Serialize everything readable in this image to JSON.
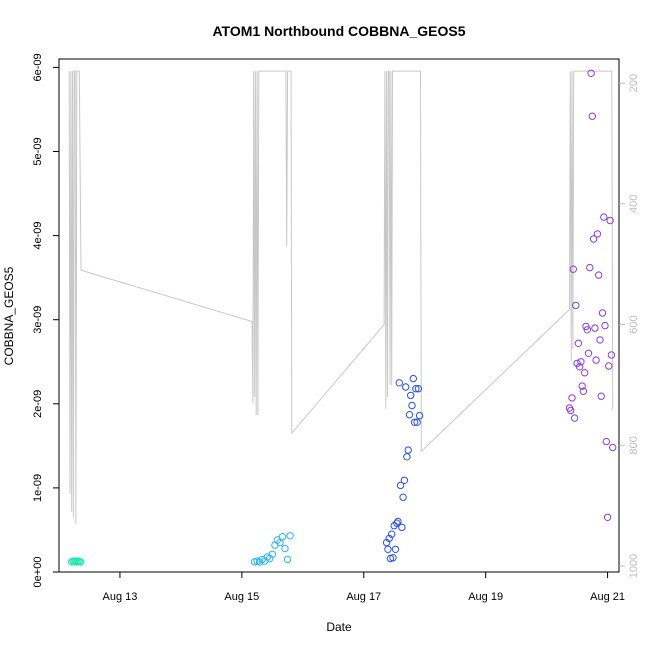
{
  "chart_data": {
    "type": "scatter",
    "title": "ATOM1 Northbound COBBNA_GEOS5",
    "xlabel": "Date",
    "ylabel": "COBBNA_GEOS5",
    "x_ticks": [
      "Aug 13",
      "Aug 15",
      "Aug 17",
      "Aug 19",
      "Aug 21"
    ],
    "y_ticks": [
      "0e+00",
      "1e-09",
      "2e-09",
      "3e-09",
      "4e-09",
      "5e-09",
      "6e-09"
    ],
    "y2_ticks": [
      "200",
      "400",
      "600",
      "800",
      "1000"
    ],
    "xlim": [
      "Aug 12 00:00",
      "Aug 21 04:30"
    ],
    "ylim": [
      0,
      6.1e-09
    ],
    "y2lim_reversed": [
      1010,
      160
    ],
    "grid": false,
    "colors": {
      "line": "#c8c8c8",
      "points_aug12": "#1ee6b4",
      "points_aug15": "#28b4f0",
      "points_aug17": "#2850f0",
      "points_aug20": "#8c3ce6"
    },
    "points": [
      {
        "date": "Aug 12 05:00",
        "value": 1.2e-10
      },
      {
        "date": "Aug 12 05:30",
        "value": 1.3e-10
      },
      {
        "date": "Aug 12 06:00",
        "value": 1.25e-10
      },
      {
        "date": "Aug 12 06:30",
        "value": 1.3e-10
      },
      {
        "date": "Aug 12 07:00",
        "value": 1.2e-10
      },
      {
        "date": "Aug 12 07:30",
        "value": 1.3e-10
      },
      {
        "date": "Aug 12 08:00",
        "value": 1.25e-10
      },
      {
        "date": "Aug 12 08:30",
        "value": 1.2e-10
      },
      {
        "date": "Aug 15 05:00",
        "value": 1.2e-10
      },
      {
        "date": "Aug 15 06:00",
        "value": 1.3e-10
      },
      {
        "date": "Aug 15 07:00",
        "value": 1.2e-10
      },
      {
        "date": "Aug 15 08:00",
        "value": 1.5e-10
      },
      {
        "date": "Aug 15 09:00",
        "value": 1.3e-10
      },
      {
        "date": "Aug 15 10:00",
        "value": 1.8e-10
      },
      {
        "date": "Aug 15 11:00",
        "value": 1.6e-10
      },
      {
        "date": "Aug 15 12:00",
        "value": 2.1e-10
      },
      {
        "date": "Aug 15 13:00",
        "value": 3.2e-10
      },
      {
        "date": "Aug 15 14:00",
        "value": 3.8e-10
      },
      {
        "date": "Aug 15 15:00",
        "value": 3.5e-10
      },
      {
        "date": "Aug 15 16:00",
        "value": 4.2e-10
      },
      {
        "date": "Aug 15 17:00",
        "value": 2.8e-10
      },
      {
        "date": "Aug 15 18:00",
        "value": 1.5e-10
      },
      {
        "date": "Aug 15 19:00",
        "value": 4.3e-10
      },
      {
        "date": "Aug 17 09:00",
        "value": 3.5e-10
      },
      {
        "date": "Aug 17 09:30",
        "value": 2.7e-10
      },
      {
        "date": "Aug 17 10:00",
        "value": 4e-10
      },
      {
        "date": "Aug 17 10:30",
        "value": 1.6e-10
      },
      {
        "date": "Aug 17 11:00",
        "value": 4.5e-10
      },
      {
        "date": "Aug 17 11:30",
        "value": 1.7e-10
      },
      {
        "date": "Aug 17 12:00",
        "value": 5.5e-10
      },
      {
        "date": "Aug 17 12:30",
        "value": 2.7e-10
      },
      {
        "date": "Aug 17 13:00",
        "value": 5.8e-10
      },
      {
        "date": "Aug 17 13:30",
        "value": 6e-10
      },
      {
        "date": "Aug 17 14:00",
        "value": 2.25e-09
      },
      {
        "date": "Aug 17 14:30",
        "value": 1.03e-09
      },
      {
        "date": "Aug 17 15:00",
        "value": 5.3e-10
      },
      {
        "date": "Aug 17 15:30",
        "value": 8.9e-10
      },
      {
        "date": "Aug 17 16:00",
        "value": 1.09e-09
      },
      {
        "date": "Aug 17 16:30",
        "value": 2.2e-09
      },
      {
        "date": "Aug 17 17:00",
        "value": 1.37e-09
      },
      {
        "date": "Aug 17 17:30",
        "value": 1.45e-09
      },
      {
        "date": "Aug 17 18:00",
        "value": 1.87e-09
      },
      {
        "date": "Aug 17 18:30",
        "value": 2.1e-09
      },
      {
        "date": "Aug 17 19:00",
        "value": 1.98e-09
      },
      {
        "date": "Aug 17 19:30",
        "value": 2.3e-09
      },
      {
        "date": "Aug 17 20:00",
        "value": 1.78e-09
      },
      {
        "date": "Aug 17 20:30",
        "value": 2.18e-09
      },
      {
        "date": "Aug 17 21:00",
        "value": 1.78e-09
      },
      {
        "date": "Aug 17 21:30",
        "value": 2.18e-09
      },
      {
        "date": "Aug 17 22:00",
        "value": 1.86e-09
      },
      {
        "date": "Aug 20 09:00",
        "value": 1.95e-09
      },
      {
        "date": "Aug 20 09:30",
        "value": 1.92e-09
      },
      {
        "date": "Aug 20 10:00",
        "value": 2.07e-09
      },
      {
        "date": "Aug 20 10:30",
        "value": 3.6e-09
      },
      {
        "date": "Aug 20 11:00",
        "value": 1.83e-09
      },
      {
        "date": "Aug 20 11:30",
        "value": 3.17e-09
      },
      {
        "date": "Aug 20 12:00",
        "value": 2.48e-09
      },
      {
        "date": "Aug 20 12:30",
        "value": 2.72e-09
      },
      {
        "date": "Aug 20 13:00",
        "value": 2.44e-09
      },
      {
        "date": "Aug 20 13:30",
        "value": 2.5e-09
      },
      {
        "date": "Aug 20 14:00",
        "value": 2.21e-09
      },
      {
        "date": "Aug 20 14:30",
        "value": 2.15e-09
      },
      {
        "date": "Aug 20 15:00",
        "value": 2.37e-09
      },
      {
        "date": "Aug 20 15:30",
        "value": 2.92e-09
      },
      {
        "date": "Aug 20 16:00",
        "value": 2.88e-09
      },
      {
        "date": "Aug 20 16:30",
        "value": 2.6e-09
      },
      {
        "date": "Aug 20 17:00",
        "value": 3.62e-09
      },
      {
        "date": "Aug 20 17:30",
        "value": 5.93e-09
      },
      {
        "date": "Aug 20 18:00",
        "value": 5.42e-09
      },
      {
        "date": "Aug 20 18:30",
        "value": 3.96e-09
      },
      {
        "date": "Aug 20 19:00",
        "value": 2.9e-09
      },
      {
        "date": "Aug 20 19:30",
        "value": 2.52e-09
      },
      {
        "date": "Aug 20 20:00",
        "value": 4.02e-09
      },
      {
        "date": "Aug 20 20:30",
        "value": 3.53e-09
      },
      {
        "date": "Aug 20 21:00",
        "value": 2.76e-09
      },
      {
        "date": "Aug 20 21:30",
        "value": 2.09e-09
      },
      {
        "date": "Aug 20 22:00",
        "value": 3.08e-09
      },
      {
        "date": "Aug 20 22:30",
        "value": 4.22e-09
      },
      {
        "date": "Aug 20 23:00",
        "value": 2.93e-09
      },
      {
        "date": "Aug 20 23:30",
        "value": 1.55e-09
      },
      {
        "date": "Aug 21 00:00",
        "value": 6.5e-10
      },
      {
        "date": "Aug 21 00:30",
        "value": 2.45e-09
      },
      {
        "date": "Aug 21 01:00",
        "value": 4.18e-09
      },
      {
        "date": "Aug 21 01:30",
        "value": 2.58e-09
      },
      {
        "date": "Aug 21 02:00",
        "value": 1.48e-09
      }
    ],
    "line_series": {
      "name": "",
      "unit_axis": "right",
      "points": [
        [
          "Aug 12 04:00",
          180
        ],
        [
          "Aug 12 04:20",
          880
        ],
        [
          "Aug 12 04:40",
          180
        ],
        [
          "Aug 12 05:00",
          910
        ],
        [
          "Aug 12 05:20",
          180
        ],
        [
          "Aug 12 05:40",
          920
        ],
        [
          "Aug 12 06:00",
          180
        ],
        [
          "Aug 12 06:20",
          180
        ],
        [
          "Aug 12 06:40",
          930
        ],
        [
          "Aug 12 07:00",
          180
        ],
        [
          "Aug 12 07:20",
          180
        ],
        [
          "Aug 12 07:40",
          180
        ],
        [
          "Aug 12 08:00",
          180
        ],
        [
          "Aug 12 08:40",
          510
        ],
        [
          "Aug 15 04:00",
          595
        ],
        [
          "Aug 15 04:20",
          730
        ],
        [
          "Aug 15 04:40",
          180
        ],
        [
          "Aug 15 05:00",
          720
        ],
        [
          "Aug 15 05:20",
          180
        ],
        [
          "Aug 15 05:40",
          750
        ],
        [
          "Aug 15 06:00",
          180
        ],
        [
          "Aug 15 06:20",
          750
        ],
        [
          "Aug 15 06:40",
          180
        ],
        [
          "Aug 15 07:00",
          180
        ],
        [
          "Aug 15 07:20",
          180
        ],
        [
          "Aug 15 07:40",
          180
        ],
        [
          "Aug 15 08:00",
          180
        ],
        [
          "Aug 15 08:20",
          180
        ],
        [
          "Aug 15 08:40",
          180
        ],
        [
          "Aug 15 09:00",
          180
        ],
        [
          "Aug 15 09:20",
          180
        ],
        [
          "Aug 15 09:40",
          180
        ],
        [
          "Aug 15 10:00",
          180
        ],
        [
          "Aug 15 10:20",
          180
        ],
        [
          "Aug 15 10:40",
          180
        ],
        [
          "Aug 15 11:00",
          180
        ],
        [
          "Aug 15 11:20",
          180
        ],
        [
          "Aug 15 11:40",
          180
        ],
        [
          "Aug 15 12:00",
          180
        ],
        [
          "Aug 15 12:20",
          180
        ],
        [
          "Aug 15 12:40",
          180
        ],
        [
          "Aug 15 13:00",
          180
        ],
        [
          "Aug 15 13:20",
          180
        ],
        [
          "Aug 15 13:40",
          180
        ],
        [
          "Aug 15 14:00",
          180
        ],
        [
          "Aug 15 14:20",
          180
        ],
        [
          "Aug 15 14:40",
          180
        ],
        [
          "Aug 15 15:00",
          180
        ],
        [
          "Aug 15 15:20",
          180
        ],
        [
          "Aug 15 15:40",
          180
        ],
        [
          "Aug 15 16:00",
          180
        ],
        [
          "Aug 15 16:20",
          180
        ],
        [
          "Aug 15 16:40",
          180
        ],
        [
          "Aug 15 17:00",
          180
        ],
        [
          "Aug 15 17:20",
          180
        ],
        [
          "Aug 15 17:40",
          470
        ],
        [
          "Aug 15 18:00",
          180
        ],
        [
          "Aug 15 18:20",
          180
        ],
        [
          "Aug 15 18:40",
          180
        ],
        [
          "Aug 15 19:00",
          180
        ],
        [
          "Aug 15 19:20",
          180
        ],
        [
          "Aug 15 19:40",
          780
        ],
        [
          "Aug 17 08:00",
          600
        ],
        [
          "Aug 17 08:20",
          180
        ],
        [
          "Aug 17 08:40",
          740
        ],
        [
          "Aug 17 09:00",
          180
        ],
        [
          "Aug 17 09:20",
          720
        ],
        [
          "Aug 17 09:40",
          180
        ],
        [
          "Aug 17 10:00",
          180
        ],
        [
          "Aug 17 10:20",
          700
        ],
        [
          "Aug 17 10:40",
          180
        ],
        [
          "Aug 17 11:00",
          700
        ],
        [
          "Aug 17 11:20",
          180
        ],
        [
          "Aug 17 11:40",
          180
        ],
        [
          "Aug 17 12:00",
          180
        ],
        [
          "Aug 17 12:20",
          180
        ],
        [
          "Aug 17 12:40",
          180
        ],
        [
          "Aug 17 13:00",
          180
        ],
        [
          "Aug 17 13:20",
          180
        ],
        [
          "Aug 17 13:40",
          180
        ],
        [
          "Aug 17 14:00",
          180
        ],
        [
          "Aug 17 14:20",
          180
        ],
        [
          "Aug 17 14:40",
          180
        ],
        [
          "Aug 17 15:00",
          180
        ],
        [
          "Aug 17 15:20",
          180
        ],
        [
          "Aug 17 15:40",
          180
        ],
        [
          "Aug 17 16:00",
          180
        ],
        [
          "Aug 17 16:20",
          180
        ],
        [
          "Aug 17 16:40",
          180
        ],
        [
          "Aug 17 17:00",
          180
        ],
        [
          "Aug 17 17:20",
          180
        ],
        [
          "Aug 17 17:40",
          180
        ],
        [
          "Aug 17 18:00",
          180
        ],
        [
          "Aug 17 18:20",
          180
        ],
        [
          "Aug 17 18:40",
          180
        ],
        [
          "Aug 17 19:00",
          180
        ],
        [
          "Aug 17 19:20",
          180
        ],
        [
          "Aug 17 19:40",
          180
        ],
        [
          "Aug 17 20:00",
          180
        ],
        [
          "Aug 17 20:20",
          180
        ],
        [
          "Aug 17 20:40",
          180
        ],
        [
          "Aug 17 21:00",
          180
        ],
        [
          "Aug 17 21:20",
          180
        ],
        [
          "Aug 17 21:40",
          180
        ],
        [
          "Aug 17 22:00",
          180
        ],
        [
          "Aug 17 22:20",
          180
        ],
        [
          "Aug 17 22:40",
          810
        ],
        [
          "Aug 20 09:00",
          575
        ],
        [
          "Aug 20 09:20",
          180
        ],
        [
          "Aug 20 09:40",
          660
        ],
        [
          "Aug 20 10:00",
          180
        ],
        [
          "Aug 20 10:20",
          640
        ],
        [
          "Aug 20 10:40",
          180
        ],
        [
          "Aug 20 11:00",
          180
        ],
        [
          "Aug 20 11:20",
          180
        ],
        [
          "Aug 20 11:40",
          180
        ],
        [
          "Aug 20 12:00",
          180
        ],
        [
          "Aug 20 12:20",
          180
        ],
        [
          "Aug 20 12:40",
          180
        ],
        [
          "Aug 20 13:00",
          180
        ],
        [
          "Aug 20 13:20",
          180
        ],
        [
          "Aug 20 13:40",
          180
        ],
        [
          "Aug 20 14:00",
          180
        ],
        [
          "Aug 20 14:20",
          180
        ],
        [
          "Aug 20 14:40",
          180
        ],
        [
          "Aug 20 15:00",
          180
        ],
        [
          "Aug 20 15:20",
          180
        ],
        [
          "Aug 20 15:40",
          180
        ],
        [
          "Aug 20 16:00",
          180
        ],
        [
          "Aug 20 16:20",
          180
        ],
        [
          "Aug 20 16:40",
          180
        ],
        [
          "Aug 20 17:00",
          180
        ],
        [
          "Aug 20 17:20",
          180
        ],
        [
          "Aug 20 17:40",
          180
        ],
        [
          "Aug 20 18:00",
          180
        ],
        [
          "Aug 20 18:20",
          180
        ],
        [
          "Aug 20 18:40",
          180
        ],
        [
          "Aug 20 19:00",
          180
        ],
        [
          "Aug 20 19:20",
          180
        ],
        [
          "Aug 20 19:40",
          180
        ],
        [
          "Aug 20 20:00",
          180
        ],
        [
          "Aug 20 20:20",
          180
        ],
        [
          "Aug 20 20:40",
          180
        ],
        [
          "Aug 20 21:00",
          180
        ],
        [
          "Aug 20 21:20",
          180
        ],
        [
          "Aug 20 21:40",
          180
        ],
        [
          "Aug 20 22:00",
          180
        ],
        [
          "Aug 20 22:20",
          180
        ],
        [
          "Aug 20 22:40",
          180
        ],
        [
          "Aug 20 23:00",
          180
        ],
        [
          "Aug 20 23:20",
          180
        ],
        [
          "Aug 20 23:40",
          180
        ],
        [
          "Aug 21 00:00",
          180
        ],
        [
          "Aug 21 00:20",
          180
        ],
        [
          "Aug 21 00:40",
          180
        ],
        [
          "Aug 21 01:00",
          180
        ],
        [
          "Aug 21 01:20",
          180
        ],
        [
          "Aug 21 01:40",
          180
        ],
        [
          "Aug 21 02:00",
          740
        ]
      ]
    }
  }
}
